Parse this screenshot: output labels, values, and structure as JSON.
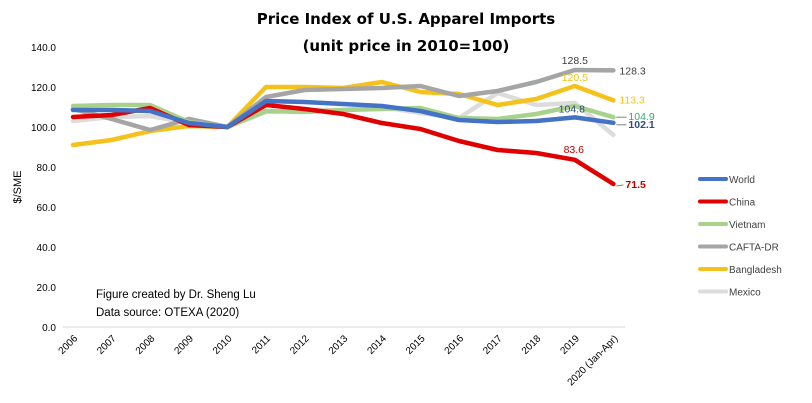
{
  "chart_data": {
    "type": "line",
    "title": "Price Index of U.S. Apparel Imports",
    "subtitle": "(unit price in 2010=100)",
    "xlabel": "",
    "ylabel": "$/SME",
    "ylim": [
      0,
      140
    ],
    "yticks": [
      "0.0",
      "20.0",
      "40.0",
      "60.0",
      "80.0",
      "100.0",
      "120.0",
      "140.0"
    ],
    "ytick_values": [
      0,
      20,
      40,
      60,
      80,
      100,
      120,
      140
    ],
    "grid": false,
    "legend_position": "right",
    "categories": [
      "2006",
      "2007",
      "2008",
      "2009",
      "2010",
      "2011",
      "2012",
      "2013",
      "2014",
      "2015",
      "2016",
      "2017",
      "2018",
      "2019",
      "2020 (Jan-Apr)"
    ],
    "series": [
      {
        "name": "World",
        "color": "#4472C4",
        "values": [
          108.5,
          108.5,
          108,
          102,
          100,
          113,
          112.5,
          111.5,
          110.5,
          108,
          103.5,
          102.5,
          103,
          104.8,
          102.1
        ]
      },
      {
        "name": "China",
        "color": "#E00000",
        "values": [
          105,
          106,
          109.5,
          101,
          100,
          111,
          109,
          106.5,
          102,
          99,
          93,
          88.5,
          87,
          83.6,
          71.5
        ]
      },
      {
        "name": "Vietnam",
        "color": "#A9D18E",
        "values": [
          110.5,
          111,
          111,
          102.5,
          100,
          108,
          107.5,
          108.5,
          109,
          109.5,
          104.5,
          104,
          106.5,
          110.5,
          104.9
        ]
      },
      {
        "name": "CAFTA-DR",
        "color": "#A5A5A5",
        "values": [
          109,
          104,
          98.5,
          104,
          100,
          115,
          118.5,
          119,
          119.5,
          120.5,
          115.5,
          118,
          122.5,
          128.5,
          128.3
        ]
      },
      {
        "name": "Bangladesh",
        "color": "#F4C21B",
        "values": [
          91,
          93.5,
          98,
          100.5,
          100,
          120,
          120,
          119.5,
          122.5,
          117.5,
          116.5,
          111,
          114,
          120.5,
          113.3
        ]
      },
      {
        "name": "Mexico",
        "color": "#DCDCDC",
        "values": [
          103,
          105,
          105.5,
          102,
          100,
          107.5,
          108.5,
          108.5,
          110,
          107,
          104.5,
          117,
          111,
          112,
          96
        ]
      }
    ],
    "annotations": [
      {
        "text": "128.5",
        "series": "CAFTA-DR",
        "category": "2019",
        "color": "#404040"
      },
      {
        "text": "128.3",
        "series": "CAFTA-DR",
        "category": "2020 (Jan-Apr)",
        "color": "#404040"
      },
      {
        "text": "120.5",
        "series": "Bangladesh",
        "category": "2019",
        "color": "#F4C21B"
      },
      {
        "text": "113.3",
        "series": "Bangladesh",
        "category": "2020 (Jan-Apr)",
        "color": "#F4C21B"
      },
      {
        "text": "104.8",
        "series": "World",
        "category": "2019",
        "color": "#2F4B7C"
      },
      {
        "text": "104.9",
        "series": "Vietnam",
        "category": "2020 (Jan-Apr)",
        "color": "#3AAA6E"
      },
      {
        "text": "102.1",
        "series": "World",
        "category": "2020 (Jan-Apr)",
        "color": "#2F4B7C",
        "bold": true
      },
      {
        "text": "83.6",
        "series": "China",
        "category": "2019",
        "color": "#C00000"
      },
      {
        "text": "71.5",
        "series": "China",
        "category": "2020 (Jan-Apr)",
        "color": "#C00000",
        "bold": true
      }
    ],
    "notes": [
      "Figure created by Dr. Sheng Lu",
      "Data source: OTEXA (2020)"
    ]
  }
}
